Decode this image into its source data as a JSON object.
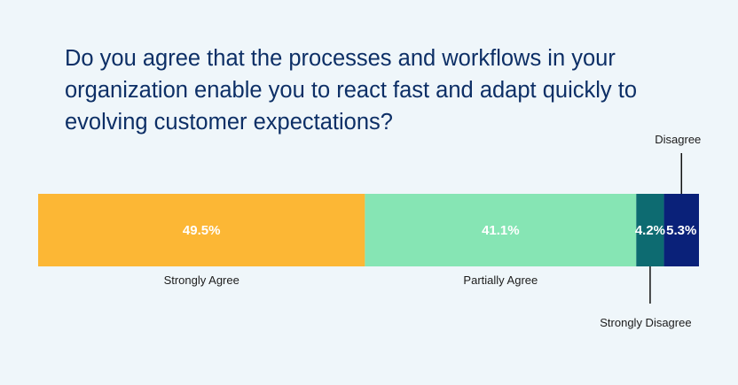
{
  "title": "Do you agree that the processes and workflows in your organization enable you to react fast and adapt quickly to evolving customer expectations?",
  "chart_data": {
    "type": "bar",
    "orientation": "horizontal-stacked",
    "categories": [
      "Strongly Agree",
      "Partially Agree",
      "Strongly Disagree",
      "Disagree"
    ],
    "values": [
      49.5,
      41.1,
      4.2,
      5.3
    ],
    "value_labels": [
      "49.5%",
      "41.1%",
      "4.2%",
      "5.3%"
    ],
    "colors": [
      "#fcb735",
      "#86e5b4",
      "#0d6b71",
      "#0a2179"
    ],
    "label_placement": [
      "below",
      "below",
      "below-callout",
      "above-callout"
    ]
  }
}
